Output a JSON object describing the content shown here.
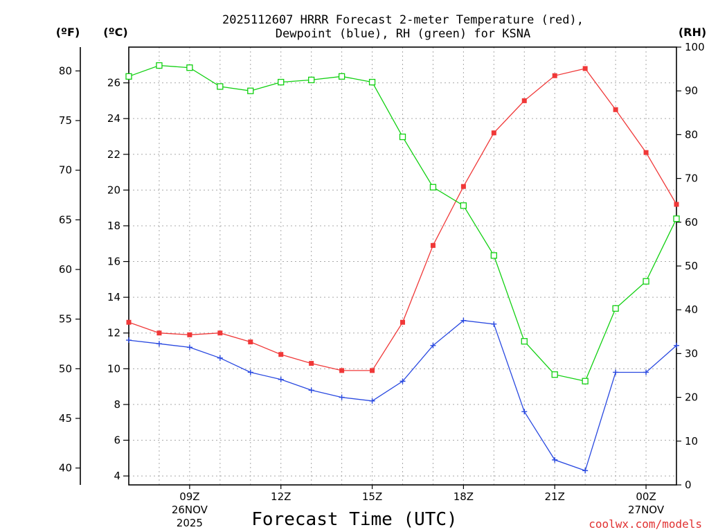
{
  "title_line1": "2025112607 HRRR Forecast 2-meter Temperature (red),",
  "title_line2": "Dewpoint (blue), RH (green) for KSNA",
  "unit_f": "(ºF)",
  "unit_c": "(ºC)",
  "unit_rh": "(RH)",
  "xlabel": "Forecast Time (UTC)",
  "credit": "coolwx.com/models",
  "colors": {
    "temp": "#f03838",
    "dew": "#2848e0",
    "rh": "#10d010"
  },
  "chart_data": {
    "type": "line",
    "x_hours_utc": [
      7,
      8,
      9,
      10,
      11,
      12,
      13,
      14,
      15,
      16,
      17,
      18,
      19,
      20,
      21,
      22,
      23,
      24,
      25
    ],
    "xlim": [
      7,
      25
    ],
    "x_ticks": [
      {
        "hour": 9,
        "label": "09Z",
        "sub1": "26NOV",
        "sub2": "2025"
      },
      {
        "hour": 12,
        "label": "12Z",
        "sub1": "",
        "sub2": ""
      },
      {
        "hour": 15,
        "label": "15Z",
        "sub1": "",
        "sub2": ""
      },
      {
        "hour": 18,
        "label": "18Z",
        "sub1": "",
        "sub2": ""
      },
      {
        "hour": 21,
        "label": "21Z",
        "sub1": "",
        "sub2": ""
      },
      {
        "hour": 24,
        "label": "00Z",
        "sub1": "27NOV",
        "sub2": ""
      }
    ],
    "y_celsius": {
      "ylim": [
        3.5,
        28.0
      ],
      "ticks": [
        4,
        6,
        8,
        10,
        12,
        14,
        16,
        18,
        20,
        22,
        24,
        26
      ]
    },
    "y_fahrenheit": {
      "ticks": [
        40,
        45,
        50,
        55,
        60,
        65,
        70,
        75,
        80
      ]
    },
    "y_rh": {
      "ylim": [
        0,
        100
      ],
      "ticks": [
        0,
        10,
        20,
        30,
        40,
        50,
        60,
        70,
        80,
        90,
        100
      ]
    },
    "series": [
      {
        "name": "2-meter Temperature",
        "key": "temp",
        "axis": "celsius",
        "marker": "filled-square",
        "values": [
          12.6,
          12.0,
          11.9,
          12.0,
          11.5,
          10.8,
          10.3,
          9.9,
          9.9,
          12.6,
          16.9,
          20.2,
          23.2,
          25.0,
          26.4,
          26.8,
          24.5,
          22.1,
          19.2
        ]
      },
      {
        "name": "Dewpoint",
        "key": "dew",
        "axis": "celsius",
        "marker": "plus",
        "values": [
          11.6,
          11.4,
          11.2,
          10.6,
          9.8,
          9.4,
          8.8,
          8.4,
          8.2,
          9.3,
          11.3,
          12.7,
          12.5,
          7.6,
          4.9,
          4.3,
          9.8,
          9.8,
          11.3
        ]
      },
      {
        "name": "RH",
        "key": "rh",
        "axis": "rh",
        "marker": "open-square",
        "values": [
          93.3,
          95.8,
          95.3,
          91.0,
          90.0,
          92.0,
          92.5,
          93.3,
          92.0,
          79.5,
          68.0,
          63.8,
          52.4,
          32.8,
          25.2,
          23.7,
          40.3,
          46.5,
          60.8
        ]
      }
    ]
  }
}
